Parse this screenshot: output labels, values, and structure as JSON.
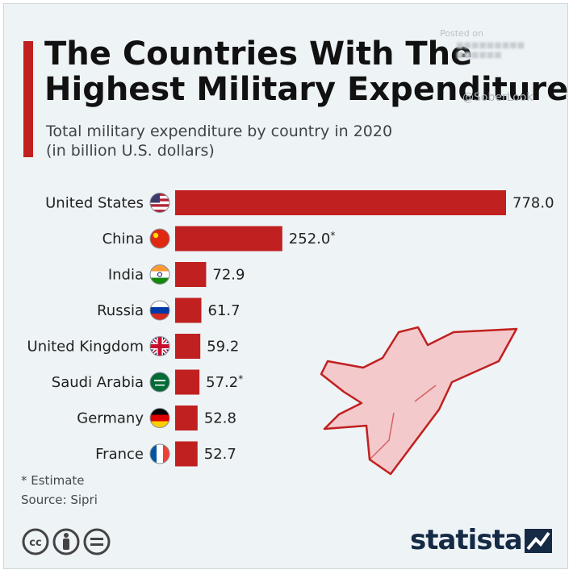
{
  "header": {
    "title": "The Countries With The Highest Military Expenditure",
    "subtitle_line1": "Total military expenditure by country in 2020",
    "subtitle_line2": "(in billion U.S. dollars)",
    "posted_label": "Posted on",
    "handle": "@SoberLook"
  },
  "chart_data": {
    "type": "bar",
    "orientation": "horizontal",
    "categories": [
      "United States",
      "China",
      "India",
      "Russia",
      "United Kingdom",
      "Saudi Arabia",
      "Germany",
      "France"
    ],
    "values": [
      778.0,
      252.0,
      72.9,
      61.7,
      59.2,
      57.2,
      52.8,
      52.7
    ],
    "value_labels": [
      "778.0",
      "252.0*",
      "72.9",
      "61.7",
      "59.2",
      "57.2*",
      "52.8",
      "52.7"
    ],
    "flags": [
      "us-flag-icon",
      "china-flag-icon",
      "india-flag-icon",
      "russia-flag-icon",
      "uk-flag-icon",
      "saudi-arabia-flag-icon",
      "germany-flag-icon",
      "france-flag-icon"
    ],
    "bar_color": "#c0201f",
    "title": "The Countries With The Highest Military Expenditure",
    "subtitle": "Total military expenditure by country in 2020 (in billion U.S. dollars)",
    "xlabel": "",
    "ylabel": "",
    "grid": false,
    "legend": "none"
  },
  "footer": {
    "footnote": "* Estimate",
    "source": "Source: Sipri",
    "license_icons": [
      "creative-commons-icon",
      "attribution-icon",
      "no-derivatives-icon"
    ],
    "brand": "statista",
    "brand_icon": "statista-logo-icon"
  },
  "colors": {
    "accent": "#c0201f",
    "background": "#eef3f6",
    "brand": "#152a44",
    "jet_fill": "#f3c9cc",
    "jet_stroke": "#c0201f"
  }
}
